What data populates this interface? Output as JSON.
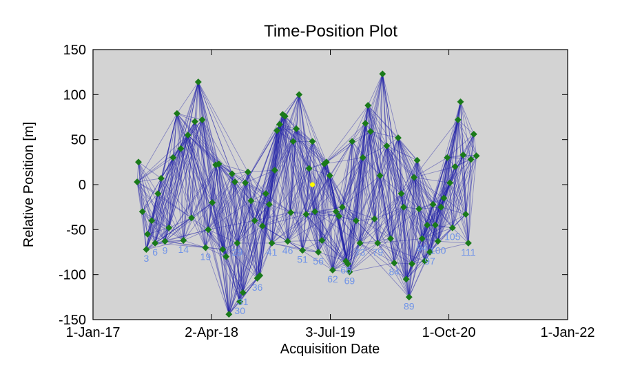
{
  "chart_data": {
    "type": "scatter",
    "title": "Time-Position Plot",
    "xlabel": "Acquisition Date",
    "ylabel": "Relative Position [m]",
    "x_ticks": [
      "1-Jan-17",
      "2-Apr-18",
      "3-Jul-19",
      "1-Oct-20",
      "1-Jan-22"
    ],
    "y_ticks": [
      "150",
      "100",
      "50",
      "0",
      "-50",
      "-100",
      "-150"
    ],
    "xlim": [
      "2017-01-01",
      "2022-01-01"
    ],
    "ylim": [
      -150,
      150
    ],
    "grid": false,
    "background_color": "#d3d3d3",
    "point_color": "#1a7a1a",
    "line_color": "#1c1ca8",
    "label_color": "#6f93e8",
    "highlight_color": "#ffff00",
    "points": [
      {
        "x": "2017-06-20",
        "y": 3
      },
      {
        "x": "2017-06-25",
        "y": 25
      },
      {
        "x": "2017-07-10",
        "y": -30
      },
      {
        "x": "2017-07-25",
        "y": -72,
        "label": "3"
      },
      {
        "x": "2017-07-30",
        "y": -55
      },
      {
        "x": "2017-08-15",
        "y": -40
      },
      {
        "x": "2017-08-28",
        "y": -65,
        "label": "6"
      },
      {
        "x": "2017-09-08",
        "y": -10
      },
      {
        "x": "2017-09-20",
        "y": 7
      },
      {
        "x": "2017-10-05",
        "y": -63,
        "label": "9"
      },
      {
        "x": "2017-10-20",
        "y": -48
      },
      {
        "x": "2017-11-05",
        "y": 30
      },
      {
        "x": "2017-11-20",
        "y": 79
      },
      {
        "x": "2017-12-05",
        "y": 40
      },
      {
        "x": "2017-12-15",
        "y": -62,
        "label": "14"
      },
      {
        "x": "2018-01-01",
        "y": 55
      },
      {
        "x": "2018-01-15",
        "y": -37
      },
      {
        "x": "2018-01-28",
        "y": 70
      },
      {
        "x": "2018-02-10",
        "y": 114
      },
      {
        "x": "2018-02-25",
        "y": 72
      },
      {
        "x": "2018-03-10",
        "y": -70,
        "label": "19"
      },
      {
        "x": "2018-03-20",
        "y": -50
      },
      {
        "x": "2018-04-05",
        "y": -20
      },
      {
        "x": "2018-04-18",
        "y": 22
      },
      {
        "x": "2018-04-30",
        "y": 23
      },
      {
        "x": "2018-05-15",
        "y": -72
      },
      {
        "x": "2018-05-28",
        "y": -80
      },
      {
        "x": "2018-06-08",
        "y": -144
      },
      {
        "x": "2018-06-20",
        "y": 12
      },
      {
        "x": "2018-07-01",
        "y": 3
      },
      {
        "x": "2018-07-10",
        "y": -65,
        "label": "29"
      },
      {
        "x": "2018-07-20",
        "y": -130,
        "label": "30"
      },
      {
        "x": "2018-08-01",
        "y": -120,
        "label": "31"
      },
      {
        "x": "2018-08-10",
        "y": 2
      },
      {
        "x": "2018-08-20",
        "y": 14
      },
      {
        "x": "2018-09-01",
        "y": -18
      },
      {
        "x": "2018-09-15",
        "y": -40
      },
      {
        "x": "2018-09-25",
        "y": -104,
        "label": "36"
      },
      {
        "x": "2018-10-05",
        "y": -101
      },
      {
        "x": "2018-10-15",
        "y": -46
      },
      {
        "x": "2018-10-28",
        "y": -10
      },
      {
        "x": "2018-11-10",
        "y": -22
      },
      {
        "x": "2018-11-20",
        "y": -65,
        "label": "41"
      },
      {
        "x": "2018-12-01",
        "y": 16
      },
      {
        "x": "2018-12-10",
        "y": 60
      },
      {
        "x": "2018-12-20",
        "y": 67
      },
      {
        "x": "2019-01-01",
        "y": 78
      },
      {
        "x": "2019-01-10",
        "y": 76
      },
      {
        "x": "2019-01-20",
        "y": -63,
        "label": "46"
      },
      {
        "x": "2019-02-01",
        "y": -31
      },
      {
        "x": "2019-02-10",
        "y": 48
      },
      {
        "x": "2019-02-22",
        "y": 62
      },
      {
        "x": "2019-03-05",
        "y": 100
      },
      {
        "x": "2019-03-18",
        "y": -73,
        "label": "51"
      },
      {
        "x": "2019-04-01",
        "y": -33
      },
      {
        "x": "2019-04-12",
        "y": 18
      },
      {
        "x": "2019-04-25",
        "y": 48
      },
      {
        "x": "2019-05-05",
        "y": -30
      },
      {
        "x": "2019-05-18",
        "y": -75,
        "label": "56"
      },
      {
        "x": "2019-06-01",
        "y": -62
      },
      {
        "x": "2019-06-10",
        "y": 23
      },
      {
        "x": "2019-06-18",
        "y": 25
      },
      {
        "x": "2019-07-01",
        "y": 10
      },
      {
        "x": "2019-07-12",
        "y": -95,
        "label": "62"
      },
      {
        "x": "2019-07-25",
        "y": -30
      },
      {
        "x": "2019-08-05",
        "y": -35
      },
      {
        "x": "2019-08-18",
        "y": -25
      },
      {
        "x": "2019-09-01",
        "y": -85,
        "label": "66"
      },
      {
        "x": "2019-09-08",
        "y": -88
      },
      {
        "x": "2019-09-15",
        "y": -97,
        "label": "69"
      },
      {
        "x": "2019-09-25",
        "y": 48
      },
      {
        "x": "2019-10-10",
        "y": -40
      },
      {
        "x": "2019-10-25",
        "y": -65,
        "label": "73"
      },
      {
        "x": "2019-11-05",
        "y": 30
      },
      {
        "x": "2019-11-15",
        "y": 68
      },
      {
        "x": "2019-11-25",
        "y": 88
      },
      {
        "x": "2019-12-05",
        "y": 59
      },
      {
        "x": "2019-12-20",
        "y": -38
      },
      {
        "x": "2020-01-01",
        "y": -65,
        "label": "79"
      },
      {
        "x": "2020-01-10",
        "y": 10
      },
      {
        "x": "2020-01-20",
        "y": 123
      },
      {
        "x": "2020-02-05",
        "y": 43
      },
      {
        "x": "2020-02-20",
        "y": -60
      },
      {
        "x": "2020-03-05",
        "y": -87,
        "label": "84"
      },
      {
        "x": "2020-03-20",
        "y": 52
      },
      {
        "x": "2020-04-01",
        "y": -10
      },
      {
        "x": "2020-04-10",
        "y": -25
      },
      {
        "x": "2020-04-20",
        "y": -105
      },
      {
        "x": "2020-05-01",
        "y": -125,
        "label": "89"
      },
      {
        "x": "2020-05-12",
        "y": -88
      },
      {
        "x": "2020-05-20",
        "y": 8
      },
      {
        "x": "2020-06-01",
        "y": 27
      },
      {
        "x": "2020-06-08",
        "y": -27
      },
      {
        "x": "2020-06-20",
        "y": -60,
        "label": "94"
      },
      {
        "x": "2020-07-01",
        "y": -85
      },
      {
        "x": "2020-07-10",
        "y": -45
      },
      {
        "x": "2020-07-20",
        "y": -75,
        "label": "97"
      },
      {
        "x": "2020-08-01",
        "y": -22
      },
      {
        "x": "2020-08-10",
        "y": -45
      },
      {
        "x": "2020-08-20",
        "y": -63,
        "label": "100"
      },
      {
        "x": "2020-09-01",
        "y": -25
      },
      {
        "x": "2020-09-12",
        "y": -15
      },
      {
        "x": "2020-09-25",
        "y": 30
      },
      {
        "x": "2020-10-05",
        "y": 2
      },
      {
        "x": "2020-10-15",
        "y": -48,
        "label": "105"
      },
      {
        "x": "2020-10-25",
        "y": 20
      },
      {
        "x": "2020-11-05",
        "y": 72
      },
      {
        "x": "2020-11-15",
        "y": 92
      },
      {
        "x": "2020-11-25",
        "y": 33
      },
      {
        "x": "2020-12-05",
        "y": -33
      },
      {
        "x": "2020-12-15",
        "y": -65,
        "label": "111"
      },
      {
        "x": "2020-12-25",
        "y": 28
      },
      {
        "x": "2021-01-05",
        "y": 56
      },
      {
        "x": "2021-01-15",
        "y": 32
      }
    ],
    "highlight": {
      "x": "2019-04-25",
      "y": 0
    }
  }
}
